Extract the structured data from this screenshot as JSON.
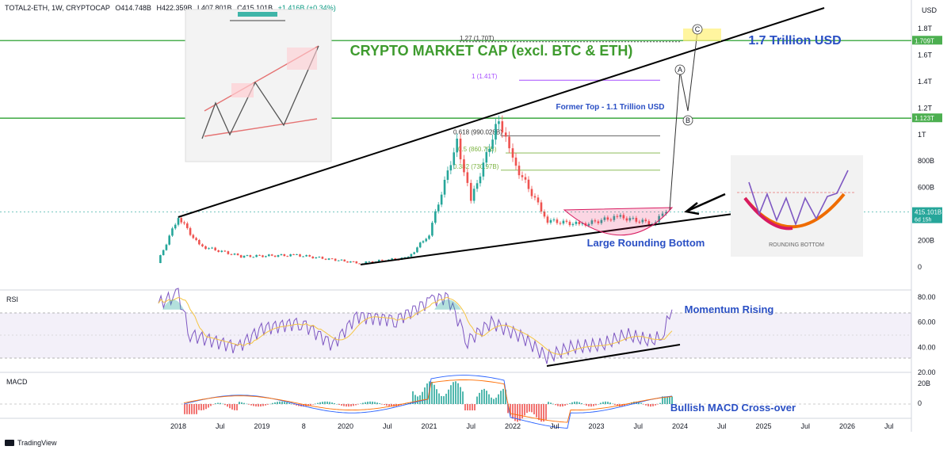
{
  "header": {
    "symbol": "TOTAL2-ETH, 1W, CRYPTOCAP",
    "open": "O414.748B",
    "high": "H422.359B",
    "low": "L407.801B",
    "close": "C415.101B",
    "change": "+1.416B (+0.34%)"
  },
  "currency": "USD",
  "tv_brand": "TradingView",
  "annotations": {
    "title": "CRYPTO MARKET CAP (excl. BTC & ETH)",
    "target": "1.7 Trillion USD",
    "former_top": "Former Top - 1.1 Trillion USD",
    "rounding_bottom": "Large Rounding Bottom",
    "momentum": "Momentum Rising",
    "macd": "Bullish MACD Cross-over",
    "inset_rounding_label": "ROUNDING BOTTOM",
    "wave_a": "A",
    "wave_b": "B",
    "wave_c": "C"
  },
  "fib_labels": [
    {
      "label": "1.27 (1.70T)",
      "value": 1.7
    },
    {
      "label": "1 (1.41T)",
      "value": 1.41
    },
    {
      "label": "0.618 (990.028B)",
      "value": 0.99
    },
    {
      "label": "0.5 (860.79B)",
      "value": 0.861
    },
    {
      "label": "0.382 (730.97B)",
      "value": 0.731
    }
  ],
  "price_axis": [
    "1.8T",
    "1.6T",
    "1.4T",
    "1.2T",
    "1T",
    "800B",
    "600B",
    "400B",
    "200B",
    "0"
  ],
  "price_tags": {
    "top": "1.709T",
    "mid": "1.123T",
    "last": "415.101B",
    "countdown": "6d 15h"
  },
  "rsi_axis": [
    "80.00",
    "60.00",
    "40.00",
    "20.00"
  ],
  "macd_axis": [
    "20B",
    "0"
  ],
  "time_axis": [
    "2018",
    "Jul",
    "2019",
    "8",
    "2020",
    "Jul",
    "2021",
    "Jul",
    "2022",
    "Jul",
    "2023",
    "Jul",
    "2024",
    "Jul",
    "2025",
    "Jul",
    "2026",
    "Jul"
  ],
  "pane_labels": {
    "rsi": "RSI",
    "macd": "MACD"
  },
  "colors": {
    "green_line": "#4caf50",
    "title_green": "#3e9b2e",
    "blue_text": "#2a4fc4",
    "up": "#26a69a",
    "down": "#ef5350",
    "rsi": "#7e57c2",
    "rsi_ma": "#f5c542",
    "fib_purple": "#a64dff",
    "fib_green": "#7cb342",
    "fib_gray": "#555555",
    "macd_blue": "#2962ff",
    "macd_orange": "#ff6d00"
  },
  "chart_data": {
    "type": "line",
    "title": "CRYPTO MARKET CAP (excl. BTC & ETH)",
    "xlabel": "",
    "ylabel": "USD",
    "ylim": [
      0,
      1.8
    ],
    "x": [
      "2017-10",
      "2018-01",
      "2018-04",
      "2018-10",
      "2019-06",
      "2019-12",
      "2020-03",
      "2020-10",
      "2021-01",
      "2021-05",
      "2021-07",
      "2021-11",
      "2022-01",
      "2022-06",
      "2022-11",
      "2023-04",
      "2023-09",
      "2023-11"
    ],
    "series": [
      {
        "name": "TOTAL2-ETH",
        "values": [
          0.03,
          0.38,
          0.16,
          0.08,
          0.09,
          0.05,
          0.03,
          0.07,
          0.25,
          0.95,
          0.5,
          1.12,
          0.8,
          0.35,
          0.32,
          0.38,
          0.33,
          0.415
        ]
      }
    ],
    "horizontal_levels": [
      1.709,
      1.123
    ],
    "rsi": {
      "ylim": [
        20,
        85
      ],
      "bands": [
        30,
        70
      ],
      "last": 70
    },
    "macd": {
      "last": 10
    }
  }
}
